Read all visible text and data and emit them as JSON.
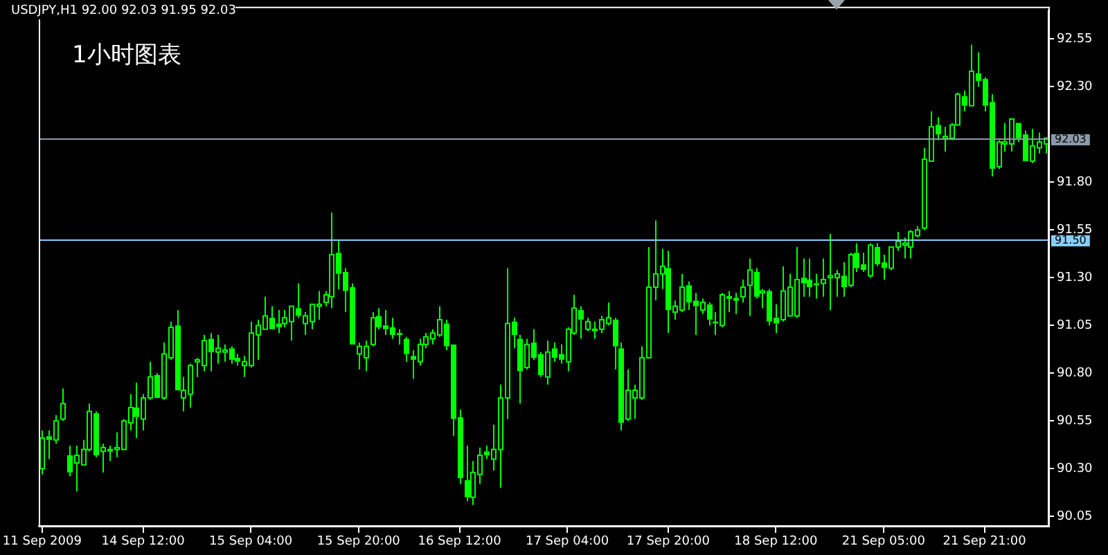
{
  "chart_data": {
    "type": "candlestick",
    "title": "USDJPY,H1 92.00 92.03 91.95 92.03",
    "annotations": [
      "1小时图表"
    ],
    "color": "#00ff00",
    "categories": [
      "11 Sep 2009",
      null,
      null,
      null,
      null,
      null,
      null,
      null,
      null,
      null,
      null,
      null,
      null,
      null,
      null,
      "14 Sep 12:00",
      null,
      null,
      null,
      null,
      null,
      null,
      null,
      null,
      null,
      null,
      null,
      null,
      null,
      null,
      null,
      "15 Sep 04:00",
      null,
      null,
      null,
      null,
      null,
      null,
      null,
      null,
      null,
      null,
      null,
      null,
      null,
      null,
      null,
      "15 Sep 20:00",
      null,
      null,
      null,
      null,
      null,
      null,
      null,
      null,
      null,
      null,
      null,
      null,
      null,
      null,
      "16 Sep 12:00",
      null,
      null,
      null,
      null,
      null,
      null,
      null,
      null,
      null,
      null,
      null,
      null,
      null,
      null,
      null,
      "17 Sep 04:00",
      null,
      null,
      null,
      null,
      null,
      null,
      null,
      null,
      null,
      null,
      null,
      null,
      null,
      null,
      "17 Sep 20:00",
      null,
      null,
      null,
      null,
      null,
      null,
      null,
      null,
      null,
      null,
      null,
      null,
      null,
      null,
      null,
      "18 Sep 12:00",
      null,
      null,
      null,
      null,
      null,
      null,
      null,
      null,
      null,
      null,
      null,
      null,
      null,
      null,
      null,
      "21 Sep 05:00",
      null,
      null,
      null,
      null,
      null,
      null,
      null,
      null,
      null,
      null,
      null,
      null,
      null,
      null,
      "21 Sep 21:00",
      null,
      null,
      null,
      null,
      null,
      null,
      null,
      null,
      null
    ],
    "ohlc": [
      [
        90.3,
        90.5,
        90.27,
        90.46
      ],
      [
        90.47,
        90.5,
        90.35,
        90.45
      ],
      [
        90.45,
        90.58,
        90.43,
        90.55
      ],
      [
        90.56,
        90.72,
        90.55,
        90.64
      ],
      [
        90.37,
        90.42,
        90.26,
        90.28
      ],
      [
        90.33,
        90.42,
        90.18,
        90.37
      ],
      [
        90.32,
        90.45,
        90.32,
        90.4
      ],
      [
        90.4,
        90.64,
        90.39,
        90.6
      ],
      [
        90.59,
        90.6,
        90.36,
        90.37
      ],
      [
        90.39,
        90.43,
        90.28,
        90.41
      ],
      [
        90.4,
        90.42,
        90.34,
        90.4
      ],
      [
        90.4,
        90.49,
        90.36,
        90.41
      ],
      [
        90.4,
        90.56,
        90.4,
        90.55
      ],
      [
        90.54,
        90.69,
        90.5,
        90.62
      ],
      [
        90.62,
        90.75,
        90.46,
        90.57
      ],
      [
        90.56,
        90.69,
        90.5,
        90.67
      ],
      [
        90.67,
        90.86,
        90.66,
        90.78
      ],
      [
        90.79,
        90.8,
        90.67,
        90.67
      ],
      [
        90.67,
        90.96,
        90.66,
        90.9
      ],
      [
        90.88,
        91.07,
        90.87,
        91.04
      ],
      [
        91.05,
        91.13,
        90.71,
        90.71
      ],
      [
        90.67,
        90.78,
        90.6,
        90.71
      ],
      [
        90.69,
        90.85,
        90.62,
        90.84
      ],
      [
        90.86,
        90.88,
        90.78,
        90.87
      ],
      [
        90.84,
        91.0,
        90.81,
        90.97
      ],
      [
        90.98,
        91.01,
        90.81,
        90.91
      ],
      [
        90.91,
        91.0,
        90.85,
        90.93
      ],
      [
        90.91,
        90.95,
        90.86,
        90.92
      ],
      [
        90.93,
        90.94,
        90.85,
        90.87
      ],
      [
        90.88,
        90.9,
        90.84,
        90.86
      ],
      [
        90.84,
        90.89,
        90.78,
        90.86
      ],
      [
        90.84,
        91.07,
        90.83,
        91.01
      ],
      [
        91.0,
        91.08,
        90.87,
        91.05
      ],
      [
        91.03,
        91.2,
        91.03,
        91.1
      ],
      [
        91.09,
        91.15,
        91.03,
        91.03
      ],
      [
        91.06,
        91.13,
        91.01,
        91.04
      ],
      [
        91.06,
        91.13,
        91.04,
        91.09
      ],
      [
        91.07,
        91.15,
        90.97,
        91.15
      ],
      [
        91.14,
        91.27,
        91.09,
        91.1
      ],
      [
        91.06,
        91.12,
        91.0,
        91.1
      ],
      [
        91.07,
        91.16,
        91.03,
        91.16
      ],
      [
        91.15,
        91.23,
        91.08,
        91.16
      ],
      [
        91.17,
        91.23,
        91.15,
        91.21
      ],
      [
        91.2,
        91.64,
        91.14,
        91.42
      ],
      [
        91.43,
        91.5,
        91.24,
        91.32
      ],
      [
        91.33,
        91.35,
        91.12,
        91.23
      ],
      [
        91.25,
        91.27,
        90.95,
        90.95
      ],
      [
        90.9,
        90.96,
        90.82,
        90.94
      ],
      [
        90.88,
        90.97,
        90.81,
        90.94
      ],
      [
        90.95,
        91.12,
        90.94,
        91.09
      ],
      [
        91.1,
        91.14,
        91.03,
        91.04
      ],
      [
        91.05,
        91.13,
        91.0,
        91.03
      ],
      [
        91.04,
        91.09,
        90.98,
        91.0
      ],
      [
        91.01,
        91.03,
        90.95,
        91.0
      ],
      [
        90.98,
        90.99,
        90.86,
        90.9
      ],
      [
        90.89,
        90.92,
        90.77,
        90.87
      ],
      [
        90.86,
        90.98,
        90.84,
        90.95
      ],
      [
        90.95,
        91.01,
        90.93,
        90.99
      ],
      [
        90.98,
        91.03,
        90.95,
        91.01
      ],
      [
        91.0,
        91.15,
        90.99,
        91.08
      ],
      [
        91.06,
        91.08,
        90.92,
        90.94
      ],
      [
        90.95,
        90.95,
        90.47,
        90.56
      ],
      [
        90.57,
        90.61,
        90.22,
        90.25
      ],
      [
        90.24,
        90.42,
        90.13,
        90.15
      ],
      [
        90.15,
        90.34,
        90.11,
        90.28
      ],
      [
        90.27,
        90.41,
        90.22,
        90.37
      ],
      [
        90.39,
        90.42,
        90.35,
        90.37
      ],
      [
        90.35,
        90.53,
        90.29,
        90.4
      ],
      [
        90.4,
        90.74,
        90.2,
        90.67
      ],
      [
        90.67,
        91.35,
        90.56,
        91.06
      ],
      [
        91.07,
        91.09,
        90.93,
        91.0
      ],
      [
        90.98,
        91.0,
        90.64,
        90.81
      ],
      [
        90.83,
        90.98,
        90.82,
        90.95
      ],
      [
        90.96,
        91.03,
        90.87,
        90.88
      ],
      [
        90.9,
        90.91,
        90.78,
        90.79
      ],
      [
        90.78,
        90.97,
        90.74,
        90.91
      ],
      [
        90.93,
        90.96,
        90.86,
        90.88
      ],
      [
        90.9,
        90.95,
        90.85,
        90.87
      ],
      [
        90.86,
        91.04,
        90.81,
        91.03
      ],
      [
        91.01,
        91.21,
        91.0,
        91.14
      ],
      [
        91.13,
        91.15,
        90.98,
        91.08
      ],
      [
        91.03,
        91.09,
        91.02,
        91.07
      ],
      [
        91.03,
        91.07,
        90.98,
        91.03
      ],
      [
        91.03,
        91.1,
        91.01,
        91.08
      ],
      [
        91.06,
        91.17,
        91.05,
        91.09
      ],
      [
        91.08,
        91.09,
        90.82,
        90.94
      ],
      [
        90.93,
        90.96,
        90.5,
        90.54
      ],
      [
        90.56,
        90.82,
        90.55,
        90.71
      ],
      [
        90.67,
        90.74,
        90.56,
        90.71
      ],
      [
        90.67,
        90.94,
        90.66,
        90.88
      ],
      [
        90.88,
        91.46,
        90.88,
        91.25
      ],
      [
        91.25,
        91.6,
        91.18,
        91.32
      ],
      [
        91.32,
        91.45,
        91.24,
        91.36
      ],
      [
        91.35,
        91.44,
        91.01,
        91.13
      ],
      [
        91.12,
        91.18,
        91.08,
        91.15
      ],
      [
        91.13,
        91.32,
        91.12,
        91.25
      ],
      [
        91.26,
        91.28,
        91.13,
        91.17
      ],
      [
        91.18,
        91.22,
        91.0,
        91.15
      ],
      [
        91.13,
        91.19,
        91.11,
        91.17
      ],
      [
        91.16,
        91.17,
        91.05,
        91.08
      ],
      [
        91.07,
        91.12,
        91.0,
        91.06
      ],
      [
        91.05,
        91.22,
        91.04,
        91.21
      ],
      [
        91.2,
        91.23,
        91.12,
        91.2
      ],
      [
        91.19,
        91.22,
        91.11,
        91.19
      ],
      [
        91.2,
        91.29,
        91.17,
        91.25
      ],
      [
        91.26,
        91.4,
        91.1,
        91.34
      ],
      [
        91.33,
        91.35,
        91.19,
        91.2
      ],
      [
        91.22,
        91.24,
        91.14,
        91.23
      ],
      [
        91.23,
        91.24,
        91.05,
        91.07
      ],
      [
        91.09,
        91.16,
        91.01,
        91.06
      ],
      [
        91.08,
        91.36,
        91.07,
        91.23
      ],
      [
        91.1,
        91.32,
        91.1,
        91.25
      ],
      [
        91.1,
        91.46,
        91.09,
        91.29
      ],
      [
        91.3,
        91.4,
        91.2,
        91.27
      ],
      [
        91.29,
        91.4,
        91.2,
        91.25
      ],
      [
        91.27,
        91.32,
        91.19,
        91.26
      ],
      [
        91.27,
        91.4,
        91.2,
        91.29
      ],
      [
        91.3,
        91.53,
        91.13,
        91.31
      ],
      [
        91.3,
        91.34,
        91.2,
        91.32
      ],
      [
        91.31,
        91.38,
        91.2,
        91.25
      ],
      [
        91.26,
        91.43,
        91.25,
        91.42
      ],
      [
        91.43,
        91.48,
        91.33,
        91.35
      ],
      [
        91.37,
        91.43,
        91.33,
        91.34
      ],
      [
        91.31,
        91.48,
        91.3,
        91.47
      ],
      [
        91.46,
        91.48,
        91.36,
        91.37
      ],
      [
        91.38,
        91.42,
        91.29,
        91.35
      ],
      [
        91.35,
        91.46,
        91.34,
        91.46
      ],
      [
        91.46,
        91.54,
        91.44,
        91.49
      ],
      [
        91.47,
        91.51,
        91.4,
        91.48
      ],
      [
        91.46,
        91.55,
        91.4,
        91.54
      ],
      [
        91.52,
        91.57,
        91.51,
        91.55
      ],
      [
        91.56,
        91.98,
        91.55,
        91.92
      ],
      [
        91.91,
        92.17,
        91.91,
        92.09
      ],
      [
        92.1,
        92.14,
        92.02,
        92.05
      ],
      [
        92.03,
        92.09,
        91.96,
        92.04
      ],
      [
        92.03,
        92.11,
        92.02,
        92.1
      ],
      [
        92.1,
        92.27,
        92.1,
        92.26
      ],
      [
        92.25,
        92.28,
        92.17,
        92.2
      ],
      [
        92.2,
        92.52,
        92.2,
        92.38
      ],
      [
        92.37,
        92.48,
        92.3,
        92.33
      ],
      [
        92.34,
        92.35,
        92.17,
        92.2
      ],
      [
        92.22,
        92.26,
        91.83,
        91.87
      ],
      [
        91.88,
        92.02,
        91.87,
        92.01
      ],
      [
        92.0,
        92.11,
        91.96,
        92.01
      ],
      [
        92.0,
        92.13,
        91.96,
        92.13
      ],
      [
        92.11,
        92.11,
        92.01,
        92.03
      ],
      [
        92.05,
        92.07,
        91.91,
        91.91
      ],
      [
        91.91,
        92.08,
        91.9,
        91.99
      ],
      [
        91.98,
        92.06,
        91.95,
        92.01
      ],
      [
        92.0,
        92.03,
        91.95,
        92.03
      ]
    ],
    "ylim": [
      90.0,
      92.7
    ],
    "yticks": [
      {
        "value": 90.05,
        "label": "90.05"
      },
      {
        "value": 90.3,
        "label": "90.30"
      },
      {
        "value": 90.55,
        "label": "90.55"
      },
      {
        "value": 90.8,
        "label": "90.80"
      },
      {
        "value": 91.05,
        "label": "91.05"
      },
      {
        "value": 91.3,
        "label": "91.30"
      },
      {
        "value": 91.55,
        "label": "91.55"
      },
      {
        "value": 91.8,
        "label": "91.80"
      },
      {
        "value": 92.3,
        "label": "92.30"
      },
      {
        "value": 92.55,
        "label": "92.55"
      }
    ],
    "ref_lines": [
      {
        "axis": "y",
        "value": 92.03,
        "label": "92.03",
        "color": "#8c9aa8"
      },
      {
        "axis": "y",
        "value": 91.5,
        "label": "91.50",
        "color": "#87cefa"
      }
    ]
  }
}
